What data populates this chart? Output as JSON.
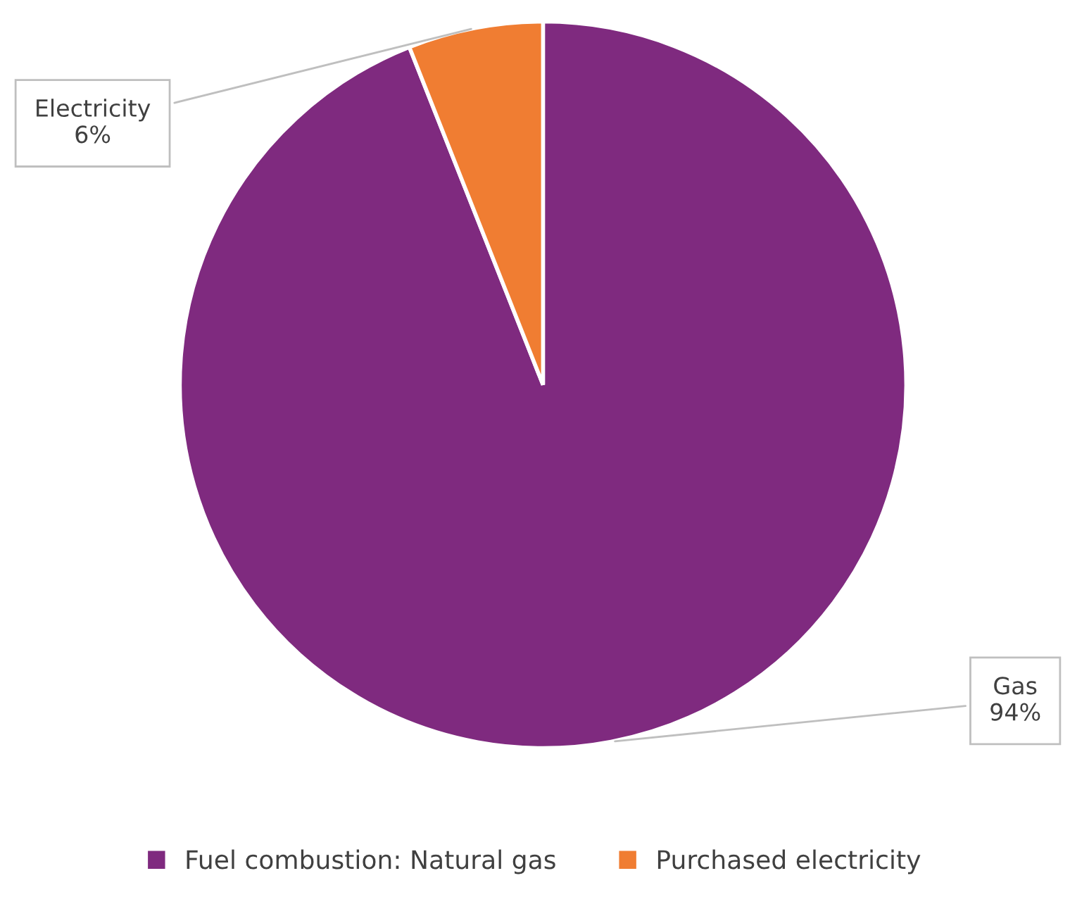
{
  "chart_data": {
    "type": "pie",
    "categories": [
      "Fuel combustion: Natural gas",
      "Purchased electricity"
    ],
    "values": [
      94,
      6
    ],
    "colors": [
      "#7f2a7f",
      "#f07d32"
    ],
    "value_labels": [
      "Gas\n94%",
      "Electricity\n6%"
    ],
    "legend": "bottom"
  }
}
